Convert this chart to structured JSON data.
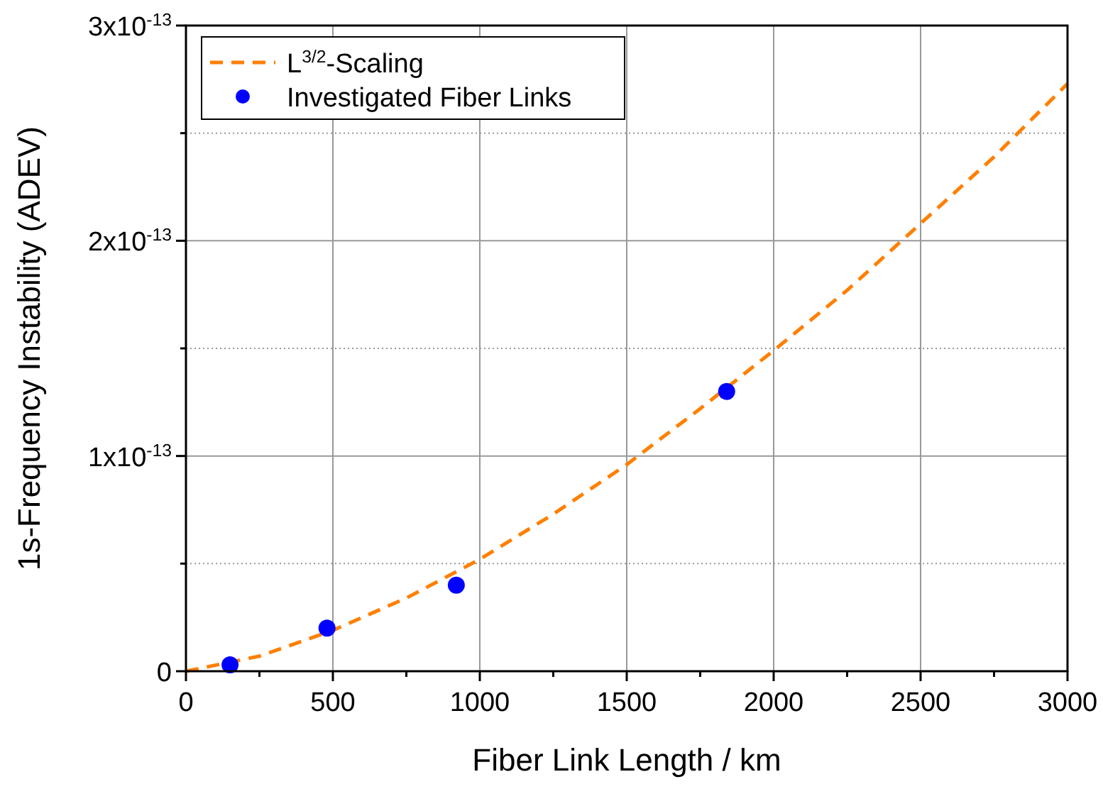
{
  "chart_data": {
    "type": "line",
    "xlabel": "Fiber Link Length / km",
    "ylabel": "1s-Frequency Instability (ADEV)",
    "xlim": [
      0,
      3000
    ],
    "ylim": [
      0,
      3e-13
    ],
    "xticks": [
      0,
      {
        "value": 250,
        "label": null
      },
      500,
      {
        "value": 750,
        "label": null
      },
      1000,
      {
        "value": 1250,
        "label": null
      },
      1500,
      {
        "value": 1750,
        "label": null
      },
      2000,
      {
        "value": 2250,
        "label": null
      },
      2500,
      {
        "value": 2750,
        "label": null
      },
      3000
    ],
    "yticks": [
      0,
      {
        "value": 5e-14,
        "label": null
      },
      {
        "value": 1e-13,
        "label": "1x10$^{-13}$"
      },
      {
        "value": 1.5e-13,
        "label": null
      },
      {
        "value": 2e-13,
        "label": "2x10$^{-13}$"
      },
      {
        "value": 2.5e-13,
        "label": null
      },
      {
        "value": 3e-13,
        "label": "3x10$^{-13}$"
      }
    ],
    "grid": true,
    "legend": "top left",
    "series": [
      {
        "name": "L$^{3/2}$-Scaling",
        "color": "#ff7f00",
        "line_style": "dashed",
        "x": [
          0,
          250,
          500,
          750,
          1000,
          1250,
          1500,
          1750,
          2000,
          2250,
          2500,
          2750,
          3000
        ],
        "values": [
          0,
          7e-15,
          1.9e-14,
          3.4e-14,
          5.2e-14,
          7.3e-14,
          9.6e-14,
          1.22e-13,
          1.49e-13,
          1.77e-13,
          2.08e-13,
          2.39e-13,
          2.73e-13
        ]
      },
      {
        "name": "Investigated Fiber Links",
        "type": "scatter",
        "color": "#0000ff",
        "marker": "circle",
        "x": [
          150,
          480,
          920,
          1840
        ],
        "values": [
          3e-15,
          2e-14,
          4e-14,
          1.3e-13
        ]
      }
    ]
  }
}
